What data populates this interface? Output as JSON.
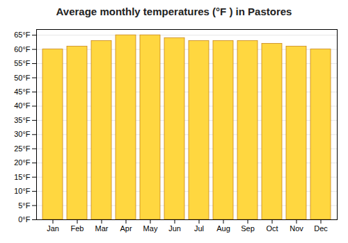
{
  "chart_data": {
    "type": "bar",
    "title": "Average monthly temperatures (°F ) in Pastores",
    "categories": [
      "Jan",
      "Feb",
      "Mar",
      "Apr",
      "May",
      "Jun",
      "Jul",
      "Aug",
      "Sep",
      "Oct",
      "Nov",
      "Dec"
    ],
    "values": [
      60,
      61,
      63,
      65,
      65,
      64,
      63,
      63,
      63,
      62,
      61,
      60
    ],
    "color": "#FFD740",
    "ylim": [
      0,
      67
    ],
    "yticks": [
      {
        "value": 0,
        "label": "0°F"
      },
      {
        "value": 5,
        "label": "5°F"
      },
      {
        "value": 10,
        "label": "10°F"
      },
      {
        "value": 15,
        "label": "15°F"
      },
      {
        "value": 20,
        "label": "20°F"
      },
      {
        "value": 25,
        "label": "25°F"
      },
      {
        "value": 30,
        "label": "30°F"
      },
      {
        "value": 35,
        "label": "35°F"
      },
      {
        "value": 40,
        "label": "40°F"
      },
      {
        "value": 45,
        "label": "45°F"
      },
      {
        "value": 50,
        "label": "50°F"
      },
      {
        "value": 55,
        "label": "55°F"
      },
      {
        "value": 60,
        "label": "60°F"
      },
      {
        "value": 65,
        "label": "65°F"
      }
    ],
    "grid": true
  }
}
